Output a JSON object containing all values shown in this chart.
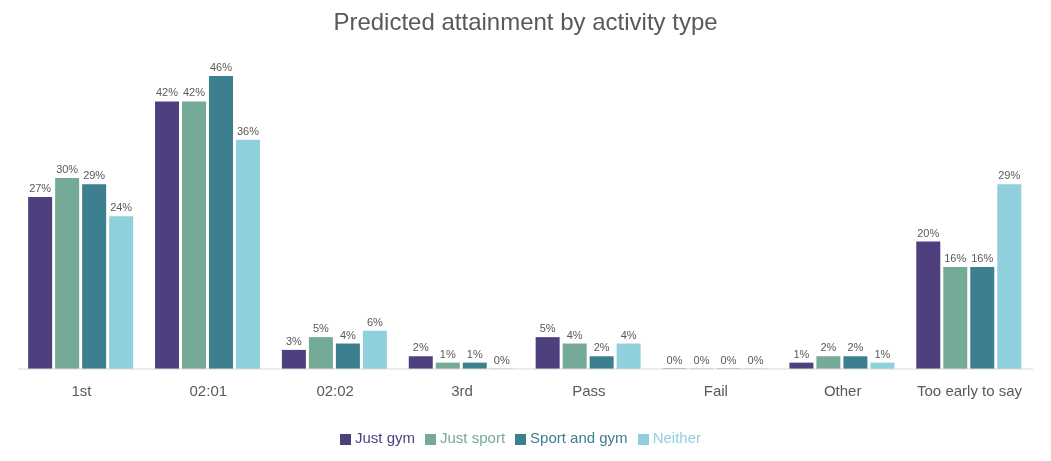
{
  "chart_data": {
    "type": "bar",
    "title": "Predicted attainment by activity type",
    "categories": [
      "1st",
      "02:01",
      "02:02",
      "3rd",
      "Pass",
      "Fail",
      "Other",
      "Too early to say"
    ],
    "series": [
      {
        "name": "Just gym",
        "color": "#4e3f7f",
        "values": [
          27,
          42,
          3,
          2,
          5,
          0,
          1,
          20
        ],
        "value_labels": [
          "27%",
          "42%",
          "3%",
          "2%",
          "5%",
          "0%",
          "1%",
          "20%"
        ]
      },
      {
        "name": "Just sport",
        "color": "#74aa96",
        "values": [
          30,
          42,
          5,
          1,
          4,
          0,
          2,
          16
        ],
        "value_labels": [
          "30%",
          "42%",
          "5%",
          "1%",
          "4%",
          "0%",
          "2%",
          "16%"
        ]
      },
      {
        "name": "Sport and gym",
        "color": "#3c7f8e",
        "values": [
          29,
          46,
          4,
          1,
          2,
          0,
          2,
          16
        ],
        "value_labels": [
          "29%",
          "46%",
          "4%",
          "1%",
          "2%",
          "0%",
          "2%",
          "16%"
        ]
      },
      {
        "name": "Neither",
        "color": "#90cfdc",
        "values": [
          24,
          36,
          6,
          0,
          4,
          0,
          1,
          29
        ],
        "value_labels": [
          "24%",
          "36%",
          "6%",
          "0%",
          "4%",
          "0%",
          "1%",
          "29%"
        ]
      }
    ],
    "legend": "bottom",
    "grid": false
  }
}
